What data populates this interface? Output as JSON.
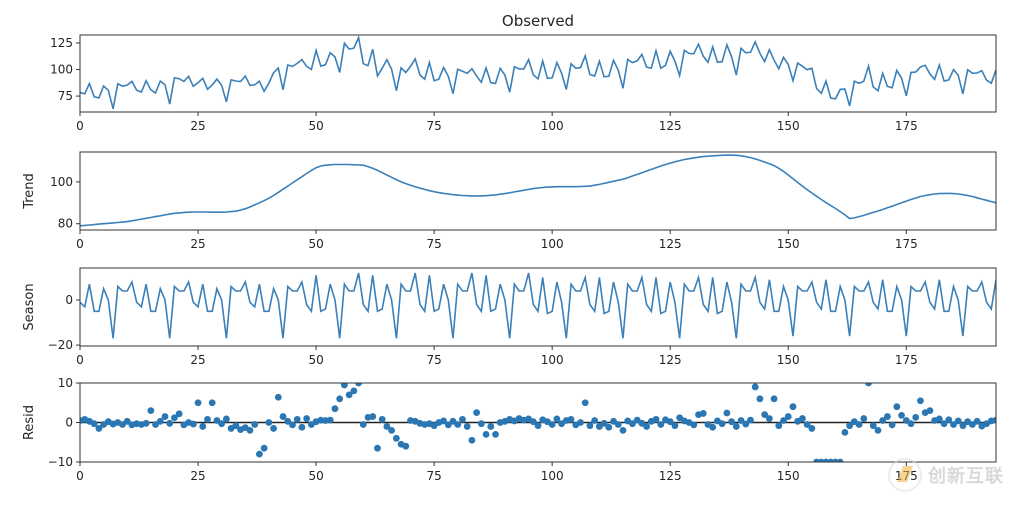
{
  "chart_data": [
    {
      "type": "line",
      "title": "Observed",
      "ylabel": "",
      "xlim": [
        0,
        194
      ],
      "ylim": [
        60,
        132.5
      ],
      "xticks": [
        0,
        25,
        50,
        75,
        100,
        125,
        150,
        175
      ],
      "yticks": [
        75,
        100,
        125
      ],
      "color": "#3b80b8",
      "values": [
        78.5,
        77,
        86.7,
        74.3,
        73.3,
        84.5,
        80.4,
        63,
        86.6,
        84.3,
        85.3,
        88.8,
        80.5,
        78.7,
        89.4,
        81,
        77.9,
        89.1,
        85.7,
        67.4,
        92.2,
        91.4,
        88.8,
        93.5,
        84.2,
        87.6,
        91.6,
        81.4,
        85.5,
        91,
        85.2,
        69.5,
        90.3,
        89.2,
        88.7,
        93.9,
        85,
        85.5,
        89,
        79.5,
        87.2,
        97,
        101.4,
        81,
        104.3,
        102.9,
        105.8,
        109.3,
        103,
        100,
        118,
        103.2,
        104.5,
        115.8,
        111.8,
        97.3,
        124.8,
        119.3,
        120.2,
        130.1,
        105.5,
        103.6,
        119,
        94,
        101.2,
        109.3,
        100.2,
        80.1,
        101.5,
        97.2,
        102.9,
        110,
        94.8,
        90.9,
        106.5,
        89.5,
        90.9,
        101.9,
        93.6,
        77.2,
        100.2,
        98.3,
        96.4,
        100.8,
        93.8,
        88,
        101.4,
        87.6,
        86.8,
        101.1,
        94.7,
        78.6,
        102.6,
        100.6,
        100.6,
        109.3,
        95,
        91.3,
        108,
        91.7,
        92.1,
        106.6,
        96.4,
        81.2,
        105.5,
        101.1,
        101.8,
        112.9,
        95.2,
        93.9,
        107.8,
        93.1,
        93.6,
        108.6,
        99.3,
        82.3,
        109.4,
        106.5,
        108.2,
        114.2,
        102.2,
        101.3,
        117.6,
        101.1,
        104,
        117.2,
        107.8,
        94.4,
        118.1,
        115.1,
        114.9,
        123.8,
        112.4,
        106.8,
        121.3,
        107,
        107.4,
        123.2,
        112,
        94.7,
        120,
        115.7,
        116.2,
        126,
        115.3,
        107.5,
        118.7,
        108.8,
        100.7,
        111.5,
        104.8,
        89.5,
        106,
        103,
        99.8,
        101.2,
        82.1,
        77.6,
        89.1,
        73.2,
        72.3,
        81.3,
        81.7,
        65.7,
        89,
        86.9,
        89,
        103.2,
        83.6,
        80.1,
        96.3,
        84.1,
        82.8,
        99.2,
        91.8,
        75.3,
        97.3,
        97.6,
        102.5,
        104,
        95.9,
        90.7,
        104.3,
        89.2,
        90.2,
        99.9,
        94.6,
        77.1,
        99.7,
        96.5,
        96.7,
        98.9,
        89.9,
        87,
        99.6
      ]
    },
    {
      "type": "line",
      "title": "",
      "ylabel": "Trend",
      "xlim": [
        0,
        194
      ],
      "ylim": [
        77,
        114.3
      ],
      "xticks": [
        0,
        25,
        50,
        75,
        100,
        125,
        150,
        175
      ],
      "yticks": [
        80,
        100
      ],
      "color": "#3b80b8",
      "values": [
        79,
        79.2,
        79.4,
        79.6,
        79.8,
        80,
        80.2,
        80.4,
        80.6,
        80.8,
        81,
        81.4,
        81.8,
        82.2,
        82.6,
        83,
        83.4,
        83.8,
        84.2,
        84.6,
        85,
        85.2,
        85.4,
        85.5,
        85.6,
        85.6,
        85.6,
        85.6,
        85.5,
        85.5,
        85.5,
        85.6,
        85.8,
        86,
        86.5,
        87.2,
        88,
        89,
        90,
        91,
        92.2,
        93.5,
        95,
        96.5,
        98,
        99.5,
        101,
        102.5,
        104,
        105.5,
        106.8,
        107.6,
        108,
        108.2,
        108.3,
        108.3,
        108.3,
        108.3,
        108.2,
        108.1,
        108,
        107.3,
        106.5,
        105.5,
        104.4,
        103.3,
        102.2,
        101.1,
        100,
        99.2,
        98.4,
        97.7,
        97,
        96.4,
        95.8,
        95.3,
        94.9,
        94.5,
        94.2,
        93.9,
        93.7,
        93.5,
        93.4,
        93.3,
        93.3,
        93.3,
        93.4,
        93.6,
        93.8,
        94.1,
        94.4,
        94.8,
        95.2,
        95.6,
        96,
        96.4,
        96.8,
        97.1,
        97.3,
        97.5,
        97.6,
        97.7,
        97.7,
        97.7,
        97.7,
        97.7,
        97.8,
        97.9,
        98,
        98.4,
        98.8,
        99.3,
        99.8,
        100.3,
        100.8,
        101.3,
        102,
        102.8,
        103.6,
        104.4,
        105.2,
        106,
        106.8,
        107.6,
        108.3,
        109,
        109.6,
        110.2,
        110.7,
        111.1,
        111.5,
        111.8,
        112.1,
        112.3,
        112.5,
        112.6,
        112.7,
        112.8,
        112.8,
        112.7,
        112.5,
        112.1,
        111.6,
        111,
        110.3,
        109.5,
        108.7,
        107.8,
        106.5,
        105,
        103.3,
        101.5,
        99.7,
        98,
        96.3,
        94.7,
        93.1,
        91.6,
        90.1,
        88.7,
        87.3,
        85.8,
        84.2,
        82.5,
        82.8,
        83.4,
        84,
        84.7,
        85.4,
        86.1,
        86.8,
        87.6,
        88.4,
        89.2,
        90,
        90.8,
        91.6,
        92.3,
        93,
        93.5,
        93.9,
        94.2,
        94.4,
        94.5,
        94.5,
        94.4,
        94.2,
        93.9,
        93.5,
        93,
        92.4,
        91.8,
        91.2,
        90.6,
        90
      ]
    },
    {
      "type": "line",
      "title": "",
      "ylabel": "Season",
      "xlim": [
        0,
        194
      ],
      "ylim": [
        -20.4,
        14.2
      ],
      "xticks": [
        0,
        25,
        50,
        75,
        100,
        125,
        150,
        175
      ],
      "yticks": [
        -20,
        0
      ],
      "color": "#3b80b8",
      "values": [
        -1,
        -3,
        7,
        -5,
        -5,
        5,
        0,
        -17,
        6,
        4,
        4,
        8,
        -1,
        -3,
        7,
        -5,
        -5,
        5,
        0,
        -17,
        6,
        4,
        4,
        8,
        -1,
        -3,
        7,
        -5,
        -5,
        5,
        0,
        -17,
        6,
        4,
        4,
        8,
        -1,
        -3,
        7,
        -5,
        -5,
        5,
        0,
        -17,
        6,
        4,
        4,
        8,
        -2,
        -5,
        11,
        -5,
        -4,
        7,
        0,
        -17,
        7,
        4,
        4,
        12,
        -2,
        -5,
        11,
        -5,
        -4,
        7,
        0,
        -17,
        7,
        4,
        4,
        12,
        -2,
        -5,
        11,
        -5,
        -4,
        7,
        0,
        -17,
        7,
        4,
        4,
        12,
        -2,
        -5,
        11,
        -5,
        -4,
        7,
        0,
        -17,
        7,
        4,
        4,
        12,
        -2,
        -5,
        10,
        -6,
        -5,
        8,
        -1,
        -17,
        7,
        4,
        4,
        10,
        -2,
        -5,
        10,
        -6,
        -5,
        8,
        -1,
        -17,
        7,
        4,
        4,
        10,
        -2,
        -5,
        10,
        -6,
        -5,
        8,
        -1,
        -17,
        7,
        4,
        4,
        10,
        -2,
        -5,
        10,
        -6,
        -5,
        8,
        -1,
        -17,
        7,
        4,
        4,
        10,
        -1,
        -4,
        9,
        -5,
        -5,
        6,
        0,
        -16,
        6,
        4,
        4,
        8,
        -1,
        -4,
        9,
        -5,
        -5,
        6,
        0,
        -16,
        6,
        4,
        4,
        8,
        -1,
        -4,
        9,
        -5,
        -5,
        6,
        0,
        -16,
        6,
        4,
        4,
        8,
        -1,
        -4,
        9,
        -5,
        -5,
        6,
        0,
        -16,
        6,
        4,
        4,
        8,
        -1,
        -4,
        9
      ]
    },
    {
      "type": "scatter",
      "title": "",
      "ylabel": "Resid",
      "xlim": [
        0,
        194
      ],
      "ylim": [
        -10,
        10
      ],
      "xticks": [
        0,
        25,
        50,
        75,
        100,
        125,
        150,
        175
      ],
      "yticks": [
        -10,
        0,
        10
      ],
      "color": "#2a77b4",
      "zero_line": true,
      "values": [
        0.5,
        0.8,
        0.3,
        -0.3,
        -1.5,
        -0.5,
        0.2,
        -0.4,
        0,
        -0.5,
        0.3,
        -0.6,
        -0.3,
        -0.5,
        -0.2,
        3,
        -0.5,
        0.3,
        1.5,
        -0.2,
        1.2,
        2.2,
        -0.6,
        0,
        -0.4,
        5,
        -1,
        0.8,
        5,
        0.5,
        -0.3,
        0.9,
        -1.5,
        -0.8,
        -1.8,
        -1.3,
        -2,
        -0.5,
        -8,
        -6.5,
        0,
        -1.5,
        6.4,
        1.5,
        0.3,
        -0.6,
        0.8,
        -1.2,
        1,
        -0.5,
        0.2,
        0.6,
        0.5,
        0.6,
        3.5,
        6,
        9.5,
        7,
        8,
        10,
        -0.5,
        1.3,
        1.5,
        -6.5,
        0.8,
        -1,
        -2,
        -4,
        -5.5,
        -6,
        0.5,
        0.3,
        -0.2,
        -0.5,
        -0.3,
        -0.8,
        0,
        0.4,
        -0.6,
        0.3,
        -0.5,
        0.8,
        -1,
        -4.5,
        2.5,
        -0.3,
        -3,
        -1,
        -3,
        0,
        0.3,
        0.8,
        0.4,
        1,
        0.6,
        0.9,
        0.2,
        -0.8,
        0.7,
        0.2,
        -0.5,
        0.9,
        -0.3,
        0.5,
        0.8,
        -0.6,
        0,
        5,
        -0.8,
        0.5,
        -1,
        -0.2,
        -1.2,
        0.3,
        -0.5,
        -2,
        0.4,
        -0.3,
        0.6,
        -0.2,
        -1,
        0.3,
        0.8,
        -0.5,
        0.7,
        0.2,
        -0.8,
        1.2,
        0.4,
        0,
        -0.6,
        2,
        2.3,
        -0.5,
        -1.2,
        0.4,
        -0.3,
        2.4,
        0.2,
        -1,
        0.5,
        -0.4,
        0.6,
        9,
        6,
        2,
        1,
        6,
        -0.8,
        0.5,
        1.5,
        4,
        0.3,
        1,
        -0.5,
        -1.5,
        -10,
        -10,
        -10,
        -10.5,
        -10,
        -10.5,
        -2.5,
        -0.8,
        0.2,
        -0.5,
        1,
        10.5,
        -0.8,
        -2,
        0.5,
        1.5,
        -0.6,
        4,
        1.8,
        0.5,
        -0.3,
        1.3,
        5.5,
        2.5,
        3,
        0.5,
        0.9,
        -0.3,
        0.7,
        -0.5,
        0.4,
        -0.8,
        0.2,
        -0.5,
        0.3,
        -0.9,
        -0.3,
        0.4,
        0.6
      ]
    }
  ],
  "watermark": {
    "text": "创新互联"
  }
}
